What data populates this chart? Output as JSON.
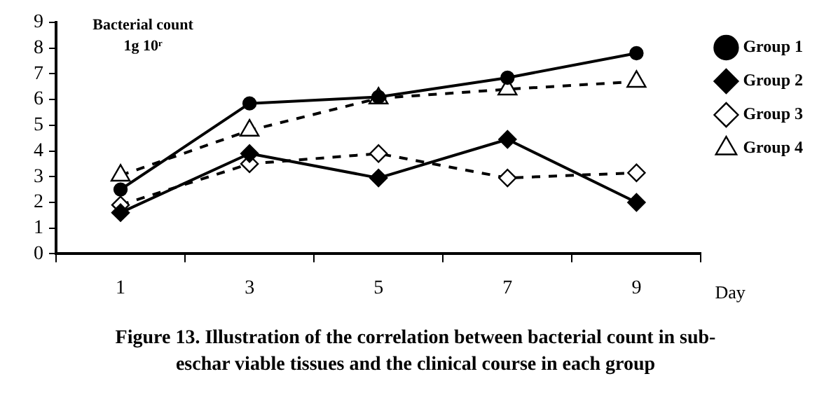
{
  "chart_data": {
    "type": "line",
    "title": "Figure 13. Illustration of the correlation between bacterial count in sub-eschar viable tissues and the clinical course in each group",
    "ylabel": "Bacterial count\n1g 10ʳ",
    "xlabel": "Day",
    "categories": [
      "1",
      "3",
      "5",
      "7",
      "9"
    ],
    "series": [
      {
        "name": "Group 1",
        "color": "#000000",
        "marker": "circle",
        "line_style": "solid",
        "values": [
          2.5,
          5.85,
          6.1,
          6.85,
          7.8
        ]
      },
      {
        "name": "Group 2",
        "color": "#000000",
        "marker": "diamond",
        "line_style": "solid",
        "values": [
          1.6,
          3.9,
          2.95,
          4.45,
          2.0
        ]
      },
      {
        "name": "Group 3",
        "color": "#000000",
        "marker": "diamond",
        "line_style": "dashed",
        "values": [
          1.9,
          3.5,
          3.9,
          2.95,
          3.15
        ]
      },
      {
        "name": "Group 4",
        "color": "#000000",
        "marker": "triangle",
        "line_style": "dashed",
        "values": [
          3.05,
          4.8,
          6.05,
          6.4,
          6.7
        ]
      }
    ],
    "ylim": [
      0,
      9
    ],
    "yticks": [
      0,
      1,
      2,
      3,
      4,
      5,
      6,
      7,
      8,
      9
    ],
    "grid": false,
    "legend": "top right"
  }
}
